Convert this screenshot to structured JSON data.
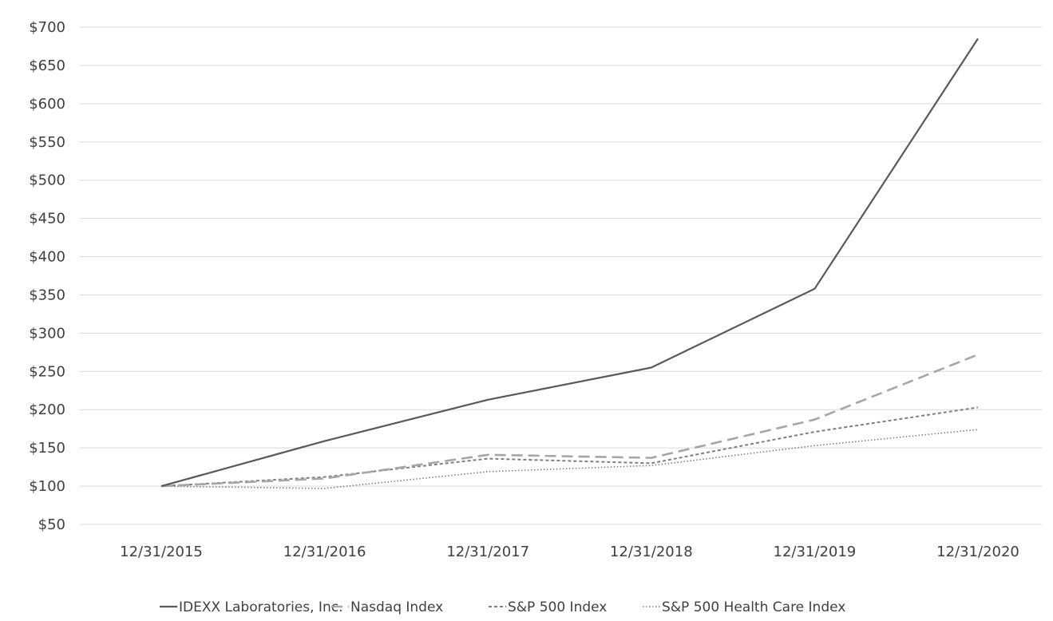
{
  "chart_data": {
    "type": "line",
    "title": "",
    "xlabel": "",
    "ylabel": "",
    "categories": [
      "12/31/2015",
      "12/31/2016",
      "12/31/2017",
      "12/31/2018",
      "12/31/2019",
      "12/31/2020"
    ],
    "ylim": [
      50,
      700
    ],
    "yticks": [
      50,
      100,
      150,
      200,
      250,
      300,
      350,
      400,
      450,
      500,
      550,
      600,
      650,
      700
    ],
    "ytick_labels": [
      "$50",
      "$100",
      "$150",
      "$200",
      "$250",
      "$300",
      "$350",
      "$400",
      "$450",
      "$500",
      "$550",
      "$600",
      "$650",
      "$700"
    ],
    "grid": true,
    "legend_position": "bottom",
    "series": [
      {
        "name": "IDEXX Laboratories, Inc.",
        "values": [
          100,
          159,
          213,
          255,
          358,
          685
        ],
        "color": "#595959",
        "style": "solid"
      },
      {
        "name": "Nasdaq Index",
        "values": [
          100,
          110,
          141,
          137,
          187,
          272
        ],
        "color": "#a6a6a6",
        "style": "dashed"
      },
      {
        "name": "S&P 500 Index",
        "values": [
          100,
          112,
          136,
          130,
          171,
          203
        ],
        "color": "#7f7f7f",
        "style": "short-dash"
      },
      {
        "name": "S&P 500 Health Care Index",
        "values": [
          100,
          97,
          119,
          127,
          153,
          174
        ],
        "color": "#7f7f7f",
        "style": "dotted"
      }
    ]
  }
}
